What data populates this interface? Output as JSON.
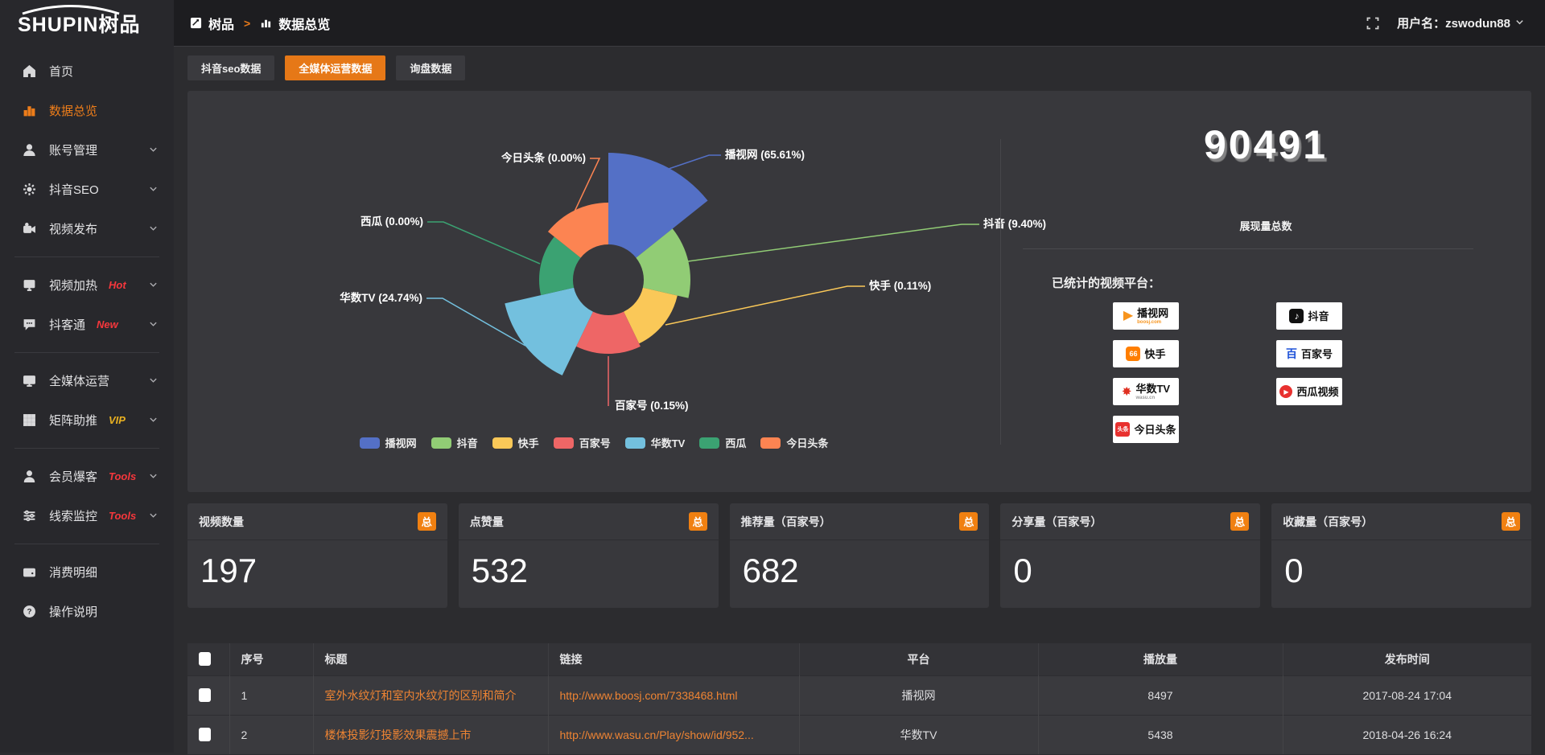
{
  "topbar": {
    "logo_text": "SHUPIN树品",
    "breadcrumb": {
      "root": "树品",
      "separator": ">",
      "current": "数据总览"
    },
    "user_label": "用户名：zswodun88"
  },
  "sidebar": {
    "items": [
      {
        "label": "首页",
        "icon": "home-icon"
      },
      {
        "label": "数据总览",
        "icon": "bar-chart-icon",
        "active": true
      },
      {
        "label": "账号管理",
        "icon": "user-icon",
        "chevron": true
      },
      {
        "label": "抖音SEO",
        "icon": "gear-icon",
        "chevron": true
      },
      {
        "label": "视频发布",
        "icon": "video-publish-icon",
        "chevron": true
      },
      {
        "divider": true
      },
      {
        "label": "视频加热",
        "icon": "screen-icon",
        "badge": "Hot",
        "badge_color": "#f5373c",
        "chevron": true
      },
      {
        "label": "抖客通",
        "icon": "chat-icon",
        "badge": "New",
        "badge_color": "#f5373c",
        "chevron": true
      },
      {
        "divider": true
      },
      {
        "label": "全媒体运营",
        "icon": "monitor-icon",
        "chevron": true
      },
      {
        "label": "矩阵助推",
        "icon": "grid-icon",
        "badge": "VIP",
        "badge_color": "#e8b021",
        "chevron": true
      },
      {
        "divider": true
      },
      {
        "label": "会员爆客",
        "icon": "member-icon",
        "badge": "Tools",
        "badge_color": "#f5373c",
        "chevron": true
      },
      {
        "label": "线索监控",
        "icon": "sliders-icon",
        "badge": "Tools",
        "badge_color": "#f5373c",
        "chevron": true
      },
      {
        "divider": true
      },
      {
        "label": "消费明细",
        "icon": "wallet-icon"
      },
      {
        "label": "操作说明",
        "icon": "question-icon"
      }
    ]
  },
  "tabs": [
    {
      "label": "抖音seo数据",
      "active": false
    },
    {
      "label": "全媒体运营数据",
      "active": true
    },
    {
      "label": "询盘数据",
      "active": false
    }
  ],
  "chart_data": {
    "type": "pie",
    "variant": "nightingale-rose",
    "labels": [
      "播视网",
      "抖音",
      "快手",
      "百家号",
      "华数TV",
      "西瓜",
      "今日头条"
    ],
    "values_percent": [
      65.61,
      9.4,
      0.11,
      0.15,
      24.74,
      0.0,
      0.0
    ],
    "label_texts": [
      "播视网 (65.61%)",
      "抖音 (9.40%)",
      "快手 (0.11%)",
      "百家号 (0.15%)",
      "华数TV (24.74%)",
      "西瓜 (0.00%)",
      "今日头条 (0.00%)"
    ],
    "colors": [
      "#5470c6",
      "#91cc75",
      "#fac858",
      "#ee6666",
      "#73c0de",
      "#3ba272",
      "#fc8452"
    ],
    "legend": [
      "播视网",
      "抖音",
      "快手",
      "百家号",
      "华数TV",
      "西瓜",
      "今日头条"
    ],
    "legend_position": "bottom",
    "inner_radius": 44,
    "display_radii": [
      158,
      102,
      88,
      92,
      132,
      86,
      96
    ],
    "equal_angles": true
  },
  "summary": {
    "total": "90491",
    "total_label": "展现量总数",
    "platforms_label": "已统计的视频平台：",
    "platforms": [
      {
        "name": "播视网",
        "sub": "boosj.com",
        "icon": "boosj-logo"
      },
      {
        "name": "抖音",
        "icon": "douyin-logo"
      },
      {
        "name": "快手",
        "icon": "kuaishou-logo"
      },
      {
        "name": "百家号",
        "icon": "baijiahao-logo"
      },
      {
        "name": "华数TV",
        "sub": "wasu.cn",
        "icon": "wasu-logo"
      },
      {
        "name": "西瓜视频",
        "icon": "xigua-logo"
      },
      {
        "name": "今日头条",
        "icon": "toutiao-logo"
      }
    ]
  },
  "stat_cards": [
    {
      "title": "视频数量",
      "badge": "总",
      "value": "197"
    },
    {
      "title": "点赞量",
      "badge": "总",
      "value": "532"
    },
    {
      "title": "推荐量（百家号）",
      "badge": "总",
      "value": "682"
    },
    {
      "title": "分享量（百家号）",
      "badge": "总",
      "value": "0"
    },
    {
      "title": "收藏量（百家号）",
      "badge": "总",
      "value": "0"
    }
  ],
  "table": {
    "headers": [
      "序号",
      "标题",
      "链接",
      "平台",
      "播放量",
      "发布时间"
    ],
    "rows": [
      {
        "no": "1",
        "title": "室外水纹灯和室内水纹灯的区别和简介",
        "link": "http://www.boosj.com/7338468.html",
        "platform": "播视网",
        "plays": "8497",
        "time": "2017-08-24 17:04"
      },
      {
        "no": "2",
        "title": "楼体投影灯投影效果震撼上市",
        "link": "http://www.wasu.cn/Play/show/id/952...",
        "platform": "华数TV",
        "plays": "5438",
        "time": "2018-04-26 16:24"
      }
    ]
  }
}
